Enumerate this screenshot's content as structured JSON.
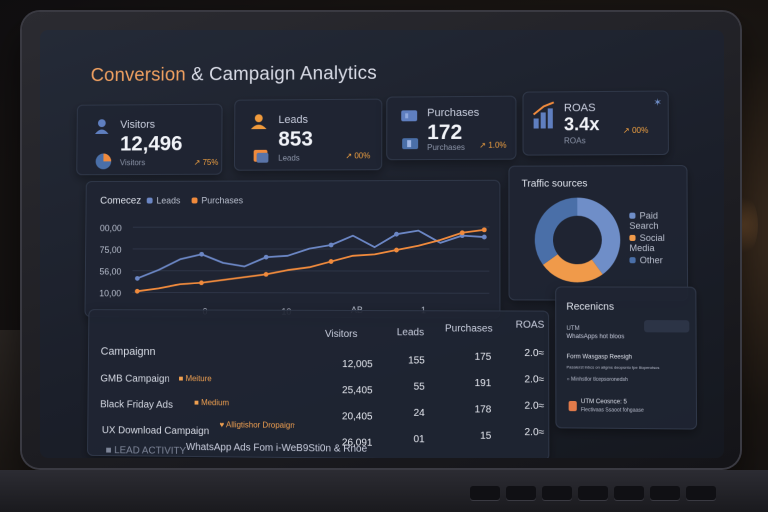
{
  "dashboard": {
    "title_part1": "Conversion",
    "title_part2": "& Campaign Analytics"
  },
  "kpis": [
    {
      "label": "Visitors",
      "value": "12,496",
      "sub": "Visitors",
      "trend": "75%"
    },
    {
      "label": "Leads",
      "value": "853",
      "sub": "Leads",
      "trend": "00%"
    },
    {
      "label": "Purchases",
      "value": "172",
      "sub": "Purchases",
      "trend": "1.0%"
    },
    {
      "label": "ROAS",
      "value": "3.4x",
      "sub": "ROAs",
      "trend": "00%"
    }
  ],
  "chart": {
    "title": "Comecez",
    "legend_leads": "Leads",
    "legend_purchases": "Purchases",
    "ytick_1": "00,00",
    "ytick_2": "75,00",
    "ytick_3": "56,00",
    "ytick_4": "10,00",
    "xtick_1": "0",
    "xtick_2": "10",
    "xtick_3": "AB",
    "xtick_4": "1"
  },
  "chart_data": {
    "type": "line",
    "title": "Comecez",
    "yticks": [
      "00,00",
      "75,00",
      "56,00",
      "10,00"
    ],
    "series": [
      {
        "name": "Leads",
        "color": "#6b86c4",
        "values": [
          28,
          40,
          55,
          62,
          50,
          45,
          58,
          60,
          70,
          75,
          88,
          72,
          90,
          95,
          78,
          88,
          86
        ]
      },
      {
        "name": "Purchases",
        "color": "#f08a3c",
        "values": [
          10,
          14,
          20,
          22,
          26,
          30,
          34,
          40,
          44,
          52,
          60,
          62,
          68,
          74,
          82,
          92,
          96
        ]
      }
    ],
    "grid": true,
    "legend_position": "top-left"
  },
  "traffic": {
    "title": "Traffic sources",
    "items": [
      {
        "label": "Paid Search",
        "color": "#6f8ec8"
      },
      {
        "label": "Social Media",
        "color": "#f09a4a"
      },
      {
        "label": "Other",
        "color": "#4a6fa8"
      }
    ],
    "slices": [
      40,
      25,
      35
    ]
  },
  "campaigns": {
    "header": "Campaignn",
    "col_visitors": "Visitors",
    "col_leads": "Leads",
    "col_purchases": "Purchases",
    "col_roas": "ROAS",
    "rows": [
      {
        "name": "GMB Campaign",
        "tag": "Meiture",
        "visitors": "12,005",
        "leads": "155",
        "purchases": "175",
        "roas": "2.0≈"
      },
      {
        "name": "Black Friday Ads",
        "tag": "Medium",
        "visitors": "25,405",
        "leads": "55",
        "purchases": "191",
        "roas": "2.0≈"
      },
      {
        "name": "UX Download Campaign",
        "tag": "Alligtishor Dropaign",
        "visitors": "20,405",
        "leads": "24",
        "purchases": "178",
        "roas": "2.0≈"
      },
      {
        "name": "LEAD ACTIVITY",
        "tag": "WhatsApp Ads Fom i-WeB9Sti0n & Rnoe",
        "visitors": "26,091",
        "leads": "01",
        "purchases": "15",
        "roas": "2.0≈"
      }
    ]
  },
  "recent": {
    "title": "Recenicns",
    "utm_label": "UTM",
    "utm_text": "WhatsApps hot bloos",
    "item1_title": "Form Wasgasp Reesigh",
    "item1_sub": "Pasalerst lnbcs on aligms deopsnto fpe liloperotscs",
    "item1_note": "Minhstlor tlcepsoronedsh",
    "item2_title": "UTM Ceosnce: 5",
    "item2_sub": "Flectivaas Ssaoot fohgaase"
  }
}
